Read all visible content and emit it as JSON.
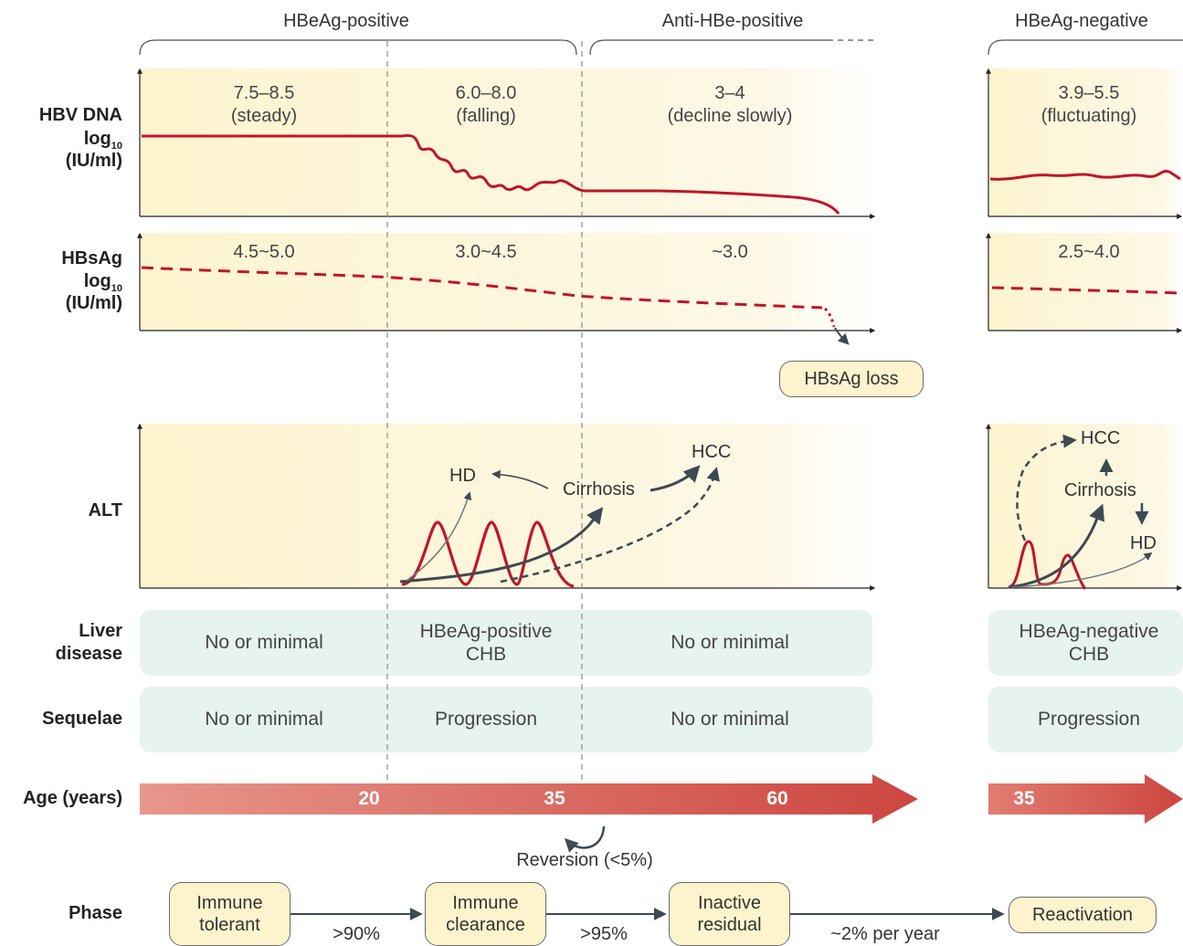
{
  "phase_headers": {
    "hbeag_positive": "HBeAg-positive",
    "anti_hbe_positive": "Anti-HBe-positive",
    "hbeag_negative": "HBeAg-negative"
  },
  "row_labels": {
    "hbv_dna_line1": "HBV DNA",
    "hbv_dna_log": "log",
    "hbv_dna_log_sub": "10",
    "hbv_dna_unit": "(IU/ml)",
    "hbsag_line1": "HBsAg",
    "hbsag_log": "log",
    "hbsag_log_sub": "10",
    "hbsag_unit": "(IU/ml)",
    "alt": "ALT",
    "liver_disease_line1": "Liver",
    "liver_disease_line2": "disease",
    "sequelae": "Sequelae",
    "age": "Age (years)",
    "phase": "Phase"
  },
  "hbv_dna": {
    "immune_tolerant_range": "7.5–8.5",
    "immune_tolerant_trend": "(steady)",
    "immune_clearance_range": "6.0–8.0",
    "immune_clearance_trend": "(falling)",
    "inactive_range": "3–4",
    "inactive_trend": "(decline slowly)",
    "reactivation_range": "3.9–5.5",
    "reactivation_trend": "(fluctuating)"
  },
  "hbsag": {
    "immune_tolerant": "4.5~5.0",
    "immune_clearance": "3.0~4.5",
    "inactive": "~3.0",
    "reactivation": "2.5~4.0",
    "loss_label": "HBsAg loss"
  },
  "alt_annotations": {
    "hd_left": "HD",
    "cirrhosis_left": "Cirrhosis",
    "hcc_left": "HCC",
    "hcc_right": "HCC",
    "cirrhosis_right": "Cirrhosis",
    "hd_right": "HD"
  },
  "liver_disease": {
    "immune_tolerant": "No or minimal",
    "immune_clearance_line1": "HBeAg-positive",
    "immune_clearance_line2": "CHB",
    "inactive": "No or minimal",
    "reactivation_line1": "HBeAg-negative",
    "reactivation_line2": "CHB"
  },
  "sequelae": {
    "immune_tolerant": "No or minimal",
    "immune_clearance": "Progression",
    "inactive": "No or minimal",
    "reactivation": "Progression"
  },
  "age_ticks": {
    "a20": "20",
    "a35": "35",
    "a60": "60",
    "right_start": "35"
  },
  "reversion_label": "Reversion (<5%)",
  "phases": {
    "immune_tolerant_line1": "Immune",
    "immune_tolerant_line2": "tolerant",
    "immune_clearance_line1": "Immune",
    "immune_clearance_line2": "clearance",
    "inactive_residual_line1": "Inactive",
    "inactive_residual_line2": "residual",
    "reactivation": "Reactivation"
  },
  "transitions": {
    "tolerant_to_clearance": ">90%",
    "clearance_to_inactive": ">95%",
    "inactive_to_reactivation": "~2% per year"
  },
  "colors": {
    "panel_yellow": "#fdf6d6",
    "panel_teal": "#e6f3ef",
    "curve_red": "#c0152a",
    "arrow_gray": "#3d4a52",
    "age_arrow_start": "#e8958b",
    "age_arrow_end": "#cf4a42",
    "box_fill": "#fdf4cd"
  }
}
